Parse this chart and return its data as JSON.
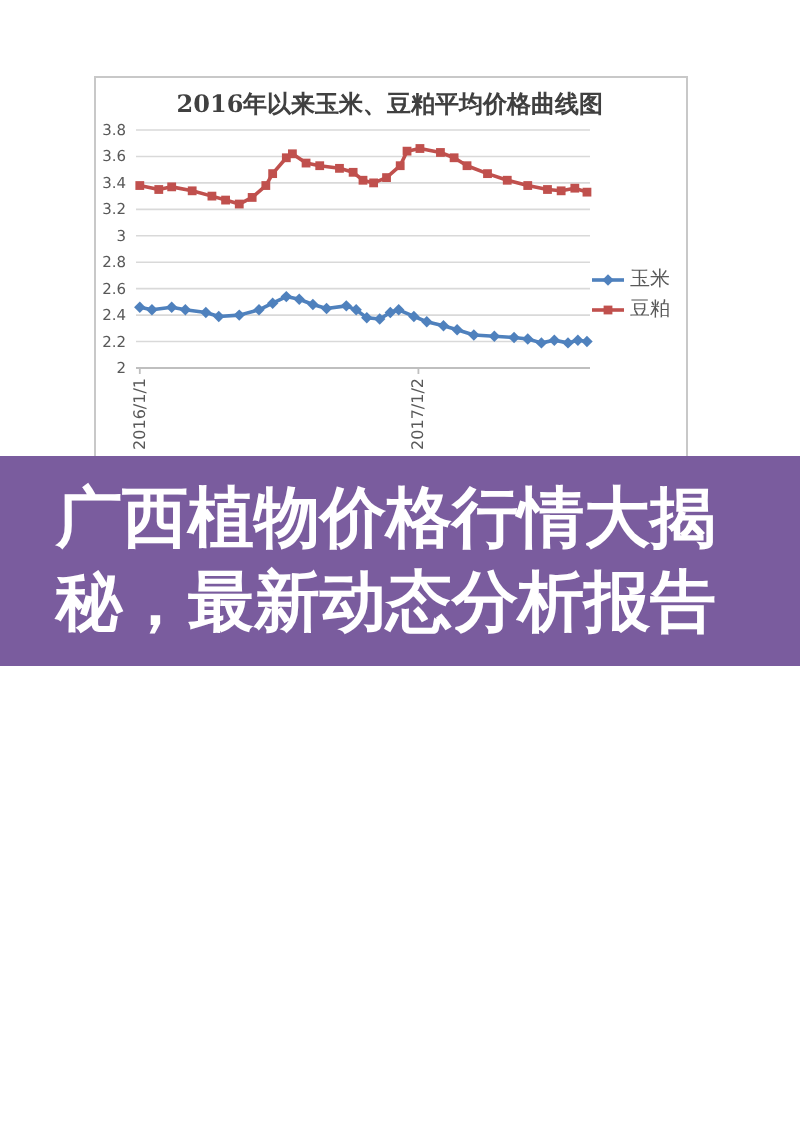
{
  "chart_data": {
    "type": "line",
    "title": "2016年以来玉米、豆粕平均价格曲线图",
    "annotations": [
      "广西植物价格行情大揭秘，最新动态分析报告"
    ],
    "xlim": [
      "2015-12-27",
      "2017-08-16"
    ],
    "xticks": [
      {
        "value": "2016-01-01",
        "label": "2016/1/1"
      },
      {
        "value": "2017-01-02",
        "label": "2017/1/2"
      }
    ],
    "ylim": [
      2,
      3.8
    ],
    "yticks": [
      2,
      2.2,
      2.4,
      2.6,
      2.8,
      3,
      3.2,
      3.4,
      3.6,
      3.8
    ],
    "grid": "y",
    "legend": "right",
    "series": [
      {
        "name": "玉米",
        "color": "#4f81bd",
        "marker": "diamond",
        "x": [
          "2016-01-01",
          "2016-01-17",
          "2016-02-12",
          "2016-03-01",
          "2016-03-28",
          "2016-04-14",
          "2016-05-11",
          "2016-06-06",
          "2016-06-24",
          "2016-07-12",
          "2016-07-29",
          "2016-08-16",
          "2016-09-03",
          "2016-09-29",
          "2016-10-12",
          "2016-10-26",
          "2016-11-12",
          "2016-11-26",
          "2016-12-07",
          "2016-12-27",
          "2017-01-13",
          "2017-02-04",
          "2017-02-22",
          "2017-03-16",
          "2017-04-12",
          "2017-05-08",
          "2017-05-26",
          "2017-06-13",
          "2017-06-30",
          "2017-07-18",
          "2017-07-31",
          "2017-08-12"
        ],
        "values": [
          2.46,
          2.44,
          2.46,
          2.44,
          2.42,
          2.39,
          2.4,
          2.44,
          2.49,
          2.54,
          2.52,
          2.48,
          2.45,
          2.47,
          2.44,
          2.38,
          2.37,
          2.42,
          2.44,
          2.39,
          2.35,
          2.32,
          2.29,
          2.25,
          2.24,
          2.23,
          2.22,
          2.19,
          2.21,
          2.19,
          2.21,
          2.2
        ]
      },
      {
        "name": "豆粕",
        "color": "#c0504d",
        "marker": "square",
        "x": [
          "2016-01-01",
          "2016-01-26",
          "2016-02-12",
          "2016-03-10",
          "2016-04-05",
          "2016-04-23",
          "2016-05-11",
          "2016-05-28",
          "2016-06-15",
          "2016-06-24",
          "2016-07-12",
          "2016-07-20",
          "2016-08-07",
          "2016-08-25",
          "2016-09-20",
          "2016-10-08",
          "2016-10-21",
          "2016-11-04",
          "2016-11-21",
          "2016-12-09",
          "2016-12-18",
          "2017-01-04",
          "2017-01-31",
          "2017-02-18",
          "2017-03-07",
          "2017-04-03",
          "2017-04-29",
          "2017-05-26",
          "2017-06-21",
          "2017-07-09",
          "2017-07-27",
          "2017-08-12"
        ],
        "values": [
          3.38,
          3.35,
          3.37,
          3.34,
          3.3,
          3.27,
          3.24,
          3.29,
          3.38,
          3.47,
          3.59,
          3.62,
          3.55,
          3.53,
          3.51,
          3.48,
          3.42,
          3.4,
          3.44,
          3.53,
          3.64,
          3.66,
          3.63,
          3.59,
          3.53,
          3.47,
          3.42,
          3.38,
          3.35,
          3.34,
          3.36,
          3.33
        ]
      }
    ]
  }
}
